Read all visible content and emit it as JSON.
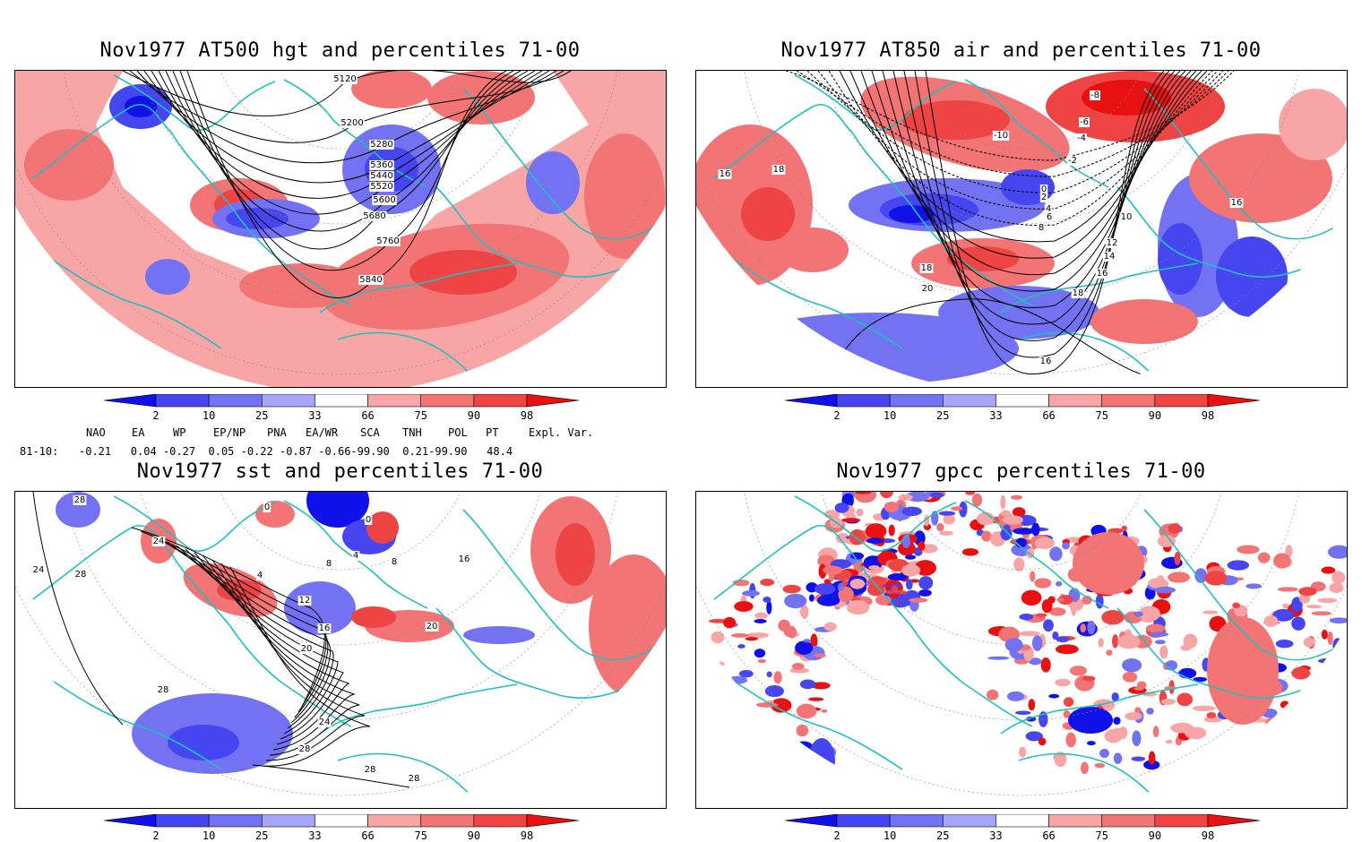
{
  "panels": [
    {
      "id": "hgt",
      "title": "Nov1977 AT500 hgt and percentiles 71-00",
      "contour_labels": [
        "5120",
        "5200",
        "5280",
        "5360",
        "5440",
        "5520",
        "5600",
        "5680",
        "5760",
        "5840"
      ]
    },
    {
      "id": "air",
      "title": "Nov1977 AT850 air and percentiles 71-00",
      "contour_labels": [
        "-8",
        "-6",
        "-4",
        "-2",
        "-10",
        "0",
        "2",
        "4",
        "6",
        "8",
        "10",
        "12",
        "14",
        "16",
        "18",
        "20",
        "16",
        "18",
        "16",
        "18",
        "16"
      ]
    },
    {
      "id": "sst",
      "title": "Nov1977 sst and percentiles 71-00",
      "contour_labels": [
        "28",
        "24",
        "28",
        "24",
        "0",
        "0",
        "4",
        "4",
        "8",
        "12",
        "16",
        "20",
        "20",
        "24",
        "28",
        "28",
        "28",
        "28",
        "16",
        "8"
      ]
    },
    {
      "id": "gpcc",
      "title": "Nov1977 gpcc percentiles 71-00",
      "contour_labels": []
    }
  ],
  "colorbar": {
    "labels": [
      "2",
      "10",
      "25",
      "33",
      "66",
      "75",
      "90",
      "98"
    ],
    "colors": {
      "b1": "#1010e8",
      "b2": "#4646f0",
      "b3": "#7272f2",
      "b4": "#a6a6f6",
      "r1": "#f7a5a5",
      "r2": "#f27474",
      "r3": "#ef4444",
      "r4": "#e81010"
    }
  },
  "teleconnections": {
    "headers": [
      "NAO",
      "EA",
      "WP",
      "EP/NP",
      "PNA",
      "EA/WR",
      "SCA",
      "TNH",
      "POL",
      "PT",
      "Expl. Var."
    ],
    "row_label": "81-10:",
    "values": "-0.21   0.04 -0.27  0.05 -0.22 -0.87 -0.66-99.90  0.21-99.90   48.4"
  },
  "colors": {
    "border": "#20c0c0",
    "contour": "#000000",
    "grid": "#888888"
  }
}
